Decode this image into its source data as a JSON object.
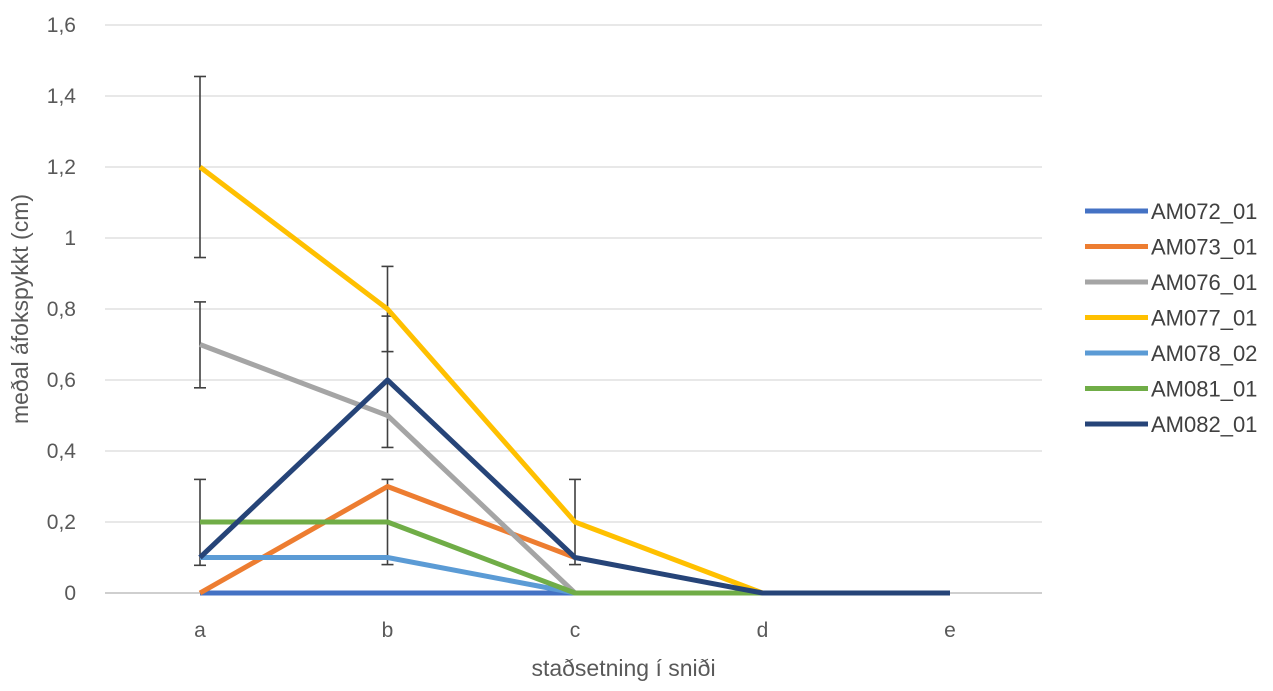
{
  "chart_data": {
    "type": "line",
    "title": "",
    "xlabel": "staðsetning í sniði",
    "ylabel": "meðal áfokspykkt (cm)",
    "categories": [
      "a",
      "b",
      "c",
      "d",
      "e"
    ],
    "ylim": [
      0,
      1.6
    ],
    "yticks": [
      0,
      0.2,
      0.4,
      0.6,
      0.8,
      1,
      1.2,
      1.4,
      1.6
    ],
    "ytick_labels": [
      "0",
      "0,2",
      "0,4",
      "0,6",
      "0,8",
      "1",
      "1,2",
      "1,4",
      "1,6"
    ],
    "grid": true,
    "legend_position": "right",
    "series": [
      {
        "name": "AM072_01",
        "color": "#4472C4",
        "values": [
          0,
          0,
          0,
          null,
          null
        ]
      },
      {
        "name": "AM073_01",
        "color": "#ED7D31",
        "values": [
          0,
          0.3,
          0.1,
          null,
          null
        ]
      },
      {
        "name": "AM076_01",
        "color": "#A5A5A5",
        "values": [
          0.7,
          0.5,
          0,
          null,
          null
        ]
      },
      {
        "name": "AM077_01",
        "color": "#FFC000",
        "values": [
          1.2,
          0.8,
          0.2,
          0,
          null
        ]
      },
      {
        "name": "AM078_02",
        "color": "#5B9BD5",
        "values": [
          0.1,
          0.1,
          0,
          null,
          null
        ]
      },
      {
        "name": "AM081_01",
        "color": "#70AD47",
        "values": [
          0.2,
          0.2,
          0,
          0,
          null
        ]
      },
      {
        "name": "AM082_01",
        "color": "#264478",
        "values": [
          0.1,
          0.6,
          0.1,
          0,
          0
        ]
      }
    ],
    "error_bars": [
      {
        "category": "a",
        "low": 0.945,
        "high": 1.455
      },
      {
        "category": "a",
        "low": 0.578,
        "high": 0.82
      },
      {
        "category": "a",
        "low": 0.078,
        "high": 0.32
      },
      {
        "category": "b",
        "low": 0.68,
        "high": 0.92
      },
      {
        "category": "b",
        "low": 0.41,
        "high": 0.78
      },
      {
        "category": "b",
        "low": 0.08,
        "high": 0.32
      },
      {
        "category": "c",
        "low": 0.08,
        "high": 0.32
      }
    ],
    "colors": {
      "grid": "#D9D9D9",
      "error_bar": "#404040",
      "text": "#595959"
    }
  }
}
